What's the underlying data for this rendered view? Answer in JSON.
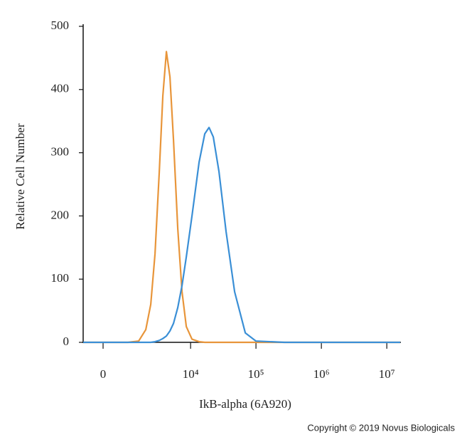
{
  "chart_data": {
    "type": "line",
    "ylabel": "Relative Cell Number",
    "xlabel": "IkB-alpha (6A920)",
    "footer": "Copyright © 2019 Novus Biologicals",
    "xscale": "asinh",
    "x": [
      -700,
      115,
      914,
      1478,
      1965,
      2377,
      2788,
      3261,
      3713,
      4222,
      4797,
      5449,
      6341,
      7376,
      8585,
      10497,
      13493,
      16495,
      19157,
      22270,
      27215,
      34960,
      47200,
      68750,
      100000,
      272000,
      951000,
      3325000,
      16000000
    ],
    "series": [
      {
        "color": "#e8953a",
        "values": [
          0,
          0,
          0,
          2,
          20,
          60,
          140,
          270,
          390,
          460,
          420,
          320,
          180,
          80,
          25,
          5,
          1,
          0,
          0,
          0,
          0,
          0,
          0,
          0,
          0,
          0,
          0,
          0,
          0
        ]
      },
      {
        "color": "#3a8fd6",
        "values": [
          0,
          0,
          0,
          0,
          0,
          0,
          1,
          3,
          6,
          10,
          18,
          30,
          55,
          90,
          135,
          200,
          285,
          330,
          340,
          325,
          270,
          175,
          80,
          15,
          2,
          0,
          0,
          0,
          0
        ]
      }
    ],
    "xlim": [
      -700,
      16000000
    ],
    "xticks": [
      0,
      {
        "value": 10000,
        "label": "10⁴"
      },
      {
        "value": 100000,
        "label": "10⁵"
      },
      {
        "value": 1000000,
        "label": "10⁶"
      },
      {
        "value": 10000000,
        "label": "10⁷"
      }
    ],
    "ylim": [
      0,
      500
    ],
    "yticks": [
      0,
      100,
      200,
      300,
      400,
      500
    ]
  }
}
